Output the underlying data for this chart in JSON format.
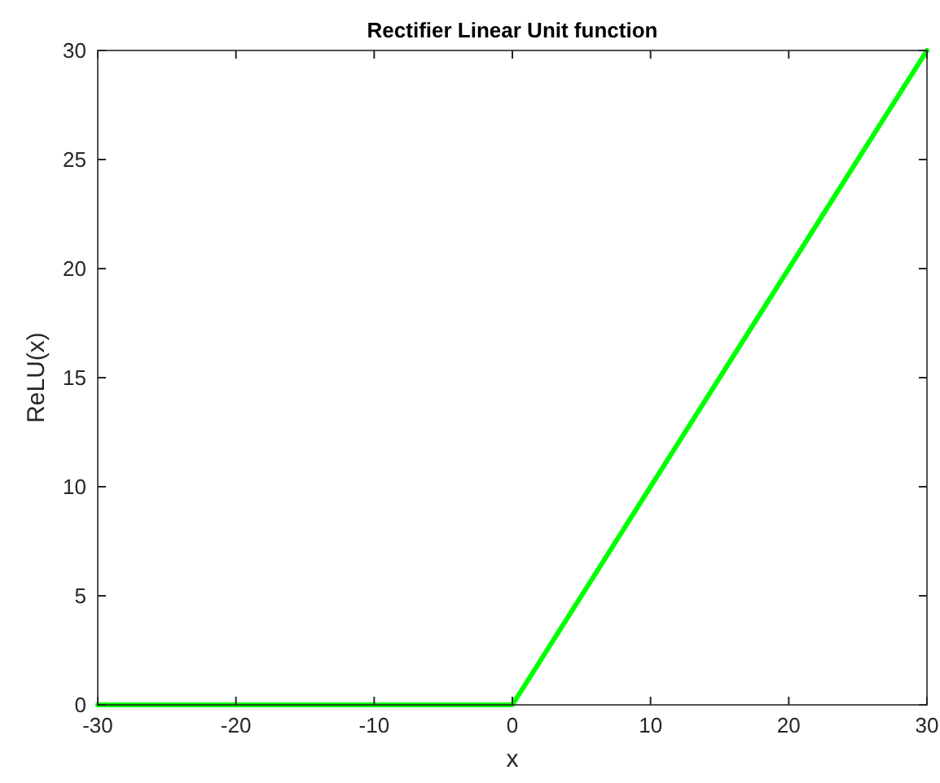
{
  "chart_data": {
    "type": "line",
    "title": "Rectifier Linear Unit function",
    "xlabel": "x",
    "ylabel": "ReLU(x)",
    "x": [
      -30,
      0,
      30
    ],
    "series": [
      {
        "color": "#00ff00",
        "values": [
          0,
          0,
          30
        ]
      }
    ],
    "xlim": [
      -30,
      30
    ],
    "xticks": [
      -30,
      -20,
      -10,
      0,
      10,
      20,
      30
    ],
    "ylim": [
      0,
      30
    ],
    "yticks": [
      0,
      5,
      10,
      15,
      20,
      25,
      30
    ],
    "grid": false,
    "marker": "none",
    "line_style": "solid"
  }
}
